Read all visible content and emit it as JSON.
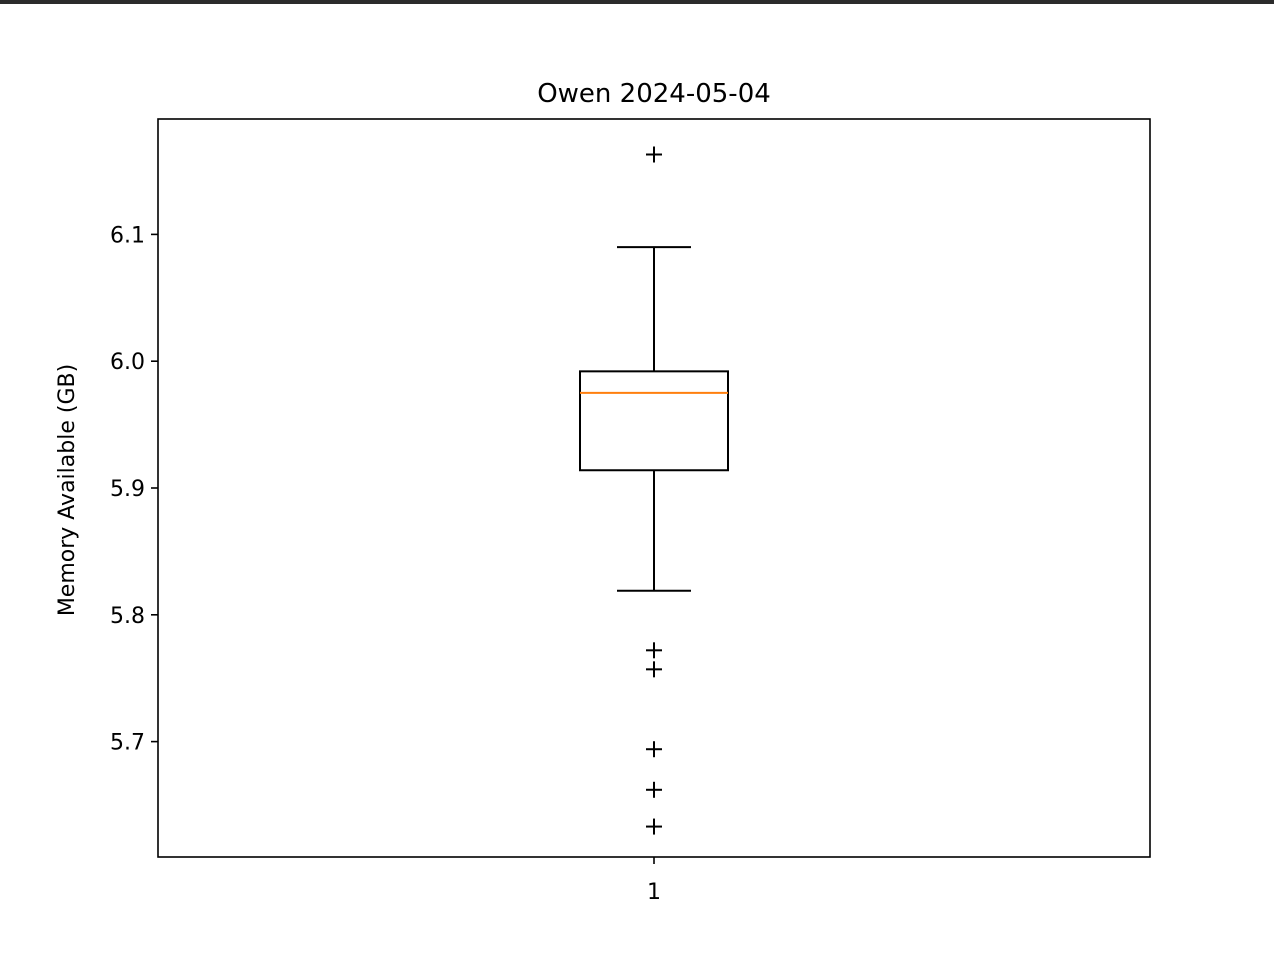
{
  "chart_data": {
    "type": "box",
    "title": "Owen 2024-05-04",
    "xlabel": "",
    "ylabel": "Memory Available (GB)",
    "categories": [
      "1"
    ],
    "ylim": [
      5.609,
      6.191
    ],
    "yticks": [
      "5.7",
      "5.8",
      "5.9",
      "6.0",
      "6.1"
    ],
    "boxes": [
      {
        "category": "1",
        "whisker_low": 5.819,
        "q1": 5.914,
        "median": 5.975,
        "q3": 5.992,
        "whisker_high": 6.09,
        "outliers": [
          6.163,
          5.772,
          5.757,
          5.694,
          5.662,
          5.633
        ]
      }
    ],
    "colors": {
      "box": "#000000",
      "median": "#ff7f0e",
      "flier": "#000000"
    },
    "grid": false,
    "legend": "none"
  }
}
